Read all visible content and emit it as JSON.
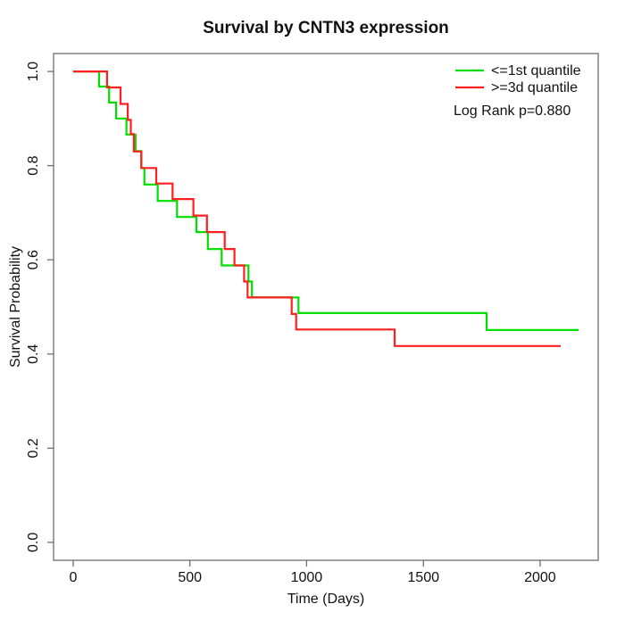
{
  "chart_data": {
    "type": "line",
    "subtype": "kaplan-meier-step",
    "title": "Survival by CNTN3 expression",
    "xlabel": "Time (Days)",
    "ylabel": "Survival Probability",
    "xticks": [
      "0",
      "500",
      "1000",
      "1500",
      "2000"
    ],
    "yticks": [
      "0.0",
      "0.2",
      "0.4",
      "0.6",
      "0.8",
      "1.0"
    ],
    "xlim": [
      -84,
      2249
    ],
    "ylim": [
      -0.038,
      1.038
    ],
    "grid": false,
    "legend_position": "top-right",
    "annotation": "Log Rank p=0.880",
    "series": [
      {
        "name": "<=1st quantile",
        "color": "#00e000",
        "points": [
          [
            0,
            1.0
          ],
          [
            111,
            0.968
          ],
          [
            154,
            0.934
          ],
          [
            184,
            0.9
          ],
          [
            228,
            0.866
          ],
          [
            267,
            0.831
          ],
          [
            292,
            0.795
          ],
          [
            305,
            0.76
          ],
          [
            362,
            0.725
          ],
          [
            445,
            0.691
          ],
          [
            528,
            0.659
          ],
          [
            577,
            0.623
          ],
          [
            636,
            0.588
          ],
          [
            751,
            0.554
          ],
          [
            766,
            0.52
          ],
          [
            965,
            0.487
          ],
          [
            1771,
            0.451
          ],
          [
            2165,
            0.451
          ]
        ]
      },
      {
        "name": ">=3d quantile",
        "color": "#ff1f1f",
        "points": [
          [
            0,
            1.0
          ],
          [
            145,
            0.966
          ],
          [
            203,
            0.931
          ],
          [
            234,
            0.897
          ],
          [
            247,
            0.867
          ],
          [
            260,
            0.83
          ],
          [
            292,
            0.795
          ],
          [
            356,
            0.762
          ],
          [
            426,
            0.729
          ],
          [
            515,
            0.694
          ],
          [
            573,
            0.659
          ],
          [
            649,
            0.623
          ],
          [
            691,
            0.588
          ],
          [
            732,
            0.554
          ],
          [
            747,
            0.52
          ],
          [
            936,
            0.485
          ],
          [
            955,
            0.452
          ],
          [
            1377,
            0.417
          ],
          [
            2088,
            0.417
          ]
        ]
      }
    ]
  }
}
